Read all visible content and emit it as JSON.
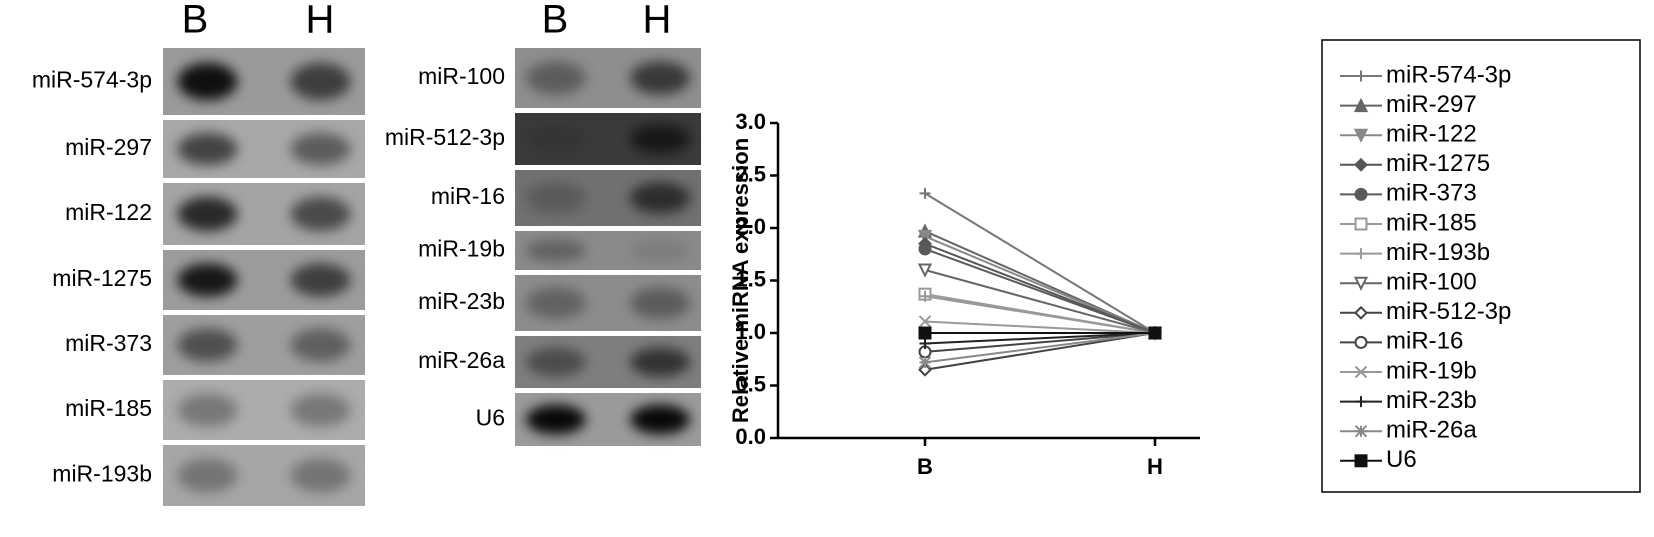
{
  "blots": [
    {
      "columns": [
        "B",
        "H"
      ],
      "rows": [
        "miR-574-3p",
        "miR-297",
        "miR-122",
        "miR-1275",
        "miR-373",
        "miR-185",
        "miR-193b"
      ]
    },
    {
      "columns": [
        "B",
        "H"
      ],
      "rows": [
        "miR-100",
        "miR-512-3p",
        "miR-16",
        "miR-19b",
        "miR-23b",
        "miR-26a",
        "U6"
      ]
    }
  ],
  "chart_data": {
    "type": "line",
    "ylabel": "Relative miRNA expression",
    "categories": [
      "B",
      "H"
    ],
    "ylim": [
      0,
      3
    ],
    "yticks": [
      {
        "value": 0,
        "label": "0.0"
      },
      {
        "value": 0.5,
        "label": "0.5"
      },
      {
        "value": 1,
        "label": "1.0"
      },
      {
        "value": 1.5,
        "label": "1.5"
      },
      {
        "value": 2,
        "label": "2.0"
      },
      {
        "value": 2.5,
        "label": "2.5"
      },
      {
        "value": 3,
        "label": "3.0"
      }
    ],
    "series": [
      {
        "name": "miR-574-3p",
        "color": "#777777",
        "marker": "plus",
        "values": [
          2.33,
          1.0
        ]
      },
      {
        "name": "miR-297",
        "color": "#666666",
        "marker": "triangle-up",
        "values": [
          1.97,
          1.0
        ]
      },
      {
        "name": "miR-122",
        "color": "#888888",
        "marker": "triangle-down",
        "values": [
          1.92,
          1.0
        ]
      },
      {
        "name": "miR-1275",
        "color": "#555555",
        "marker": "diamond",
        "values": [
          1.85,
          1.0
        ]
      },
      {
        "name": "miR-373",
        "color": "#5a5a5a",
        "marker": "circle",
        "values": [
          1.8,
          1.0
        ]
      },
      {
        "name": "miR-185",
        "color": "#999999",
        "marker": "square-open",
        "values": [
          1.37,
          1.0
        ]
      },
      {
        "name": "miR-193b",
        "color": "#999999",
        "marker": "triangle-open",
        "values": [
          1.35,
          1.0
        ]
      },
      {
        "name": "miR-100",
        "color": "#666666",
        "marker": "triangle-down-open",
        "values": [
          1.6,
          1.0
        ]
      },
      {
        "name": "miR-512-3p",
        "color": "#444444",
        "marker": "diamond-open",
        "values": [
          0.65,
          1.0
        ]
      },
      {
        "name": "miR-16",
        "color": "#444444",
        "marker": "circle-open",
        "values": [
          0.82,
          1.0
        ]
      },
      {
        "name": "miR-19b",
        "color": "#999999",
        "marker": "x",
        "values": [
          1.11,
          1.0
        ]
      },
      {
        "name": "miR-23b",
        "color": "#222222",
        "marker": "plus",
        "values": [
          0.9,
          1.0
        ]
      },
      {
        "name": "miR-26a",
        "color": "#888888",
        "marker": "asterisk",
        "values": [
          0.72,
          1.0
        ]
      },
      {
        "name": "U6",
        "color": "#111111",
        "marker": "square",
        "values": [
          1.0,
          1.0
        ]
      }
    ]
  }
}
